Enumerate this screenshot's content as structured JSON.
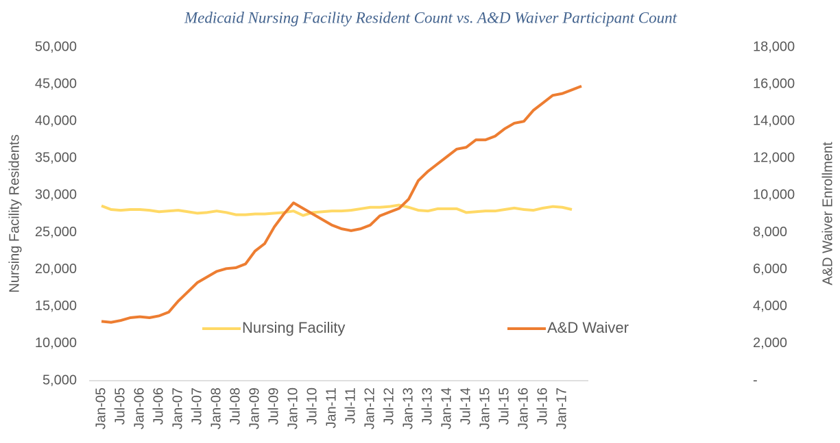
{
  "chart_data": {
    "type": "line",
    "title": "Medicaid Nursing Facility Resident Count vs. A&D Waiver Participant Count",
    "y_label": "Nursing Facility Residents",
    "y2_label": "A&D Waiver Enrollment",
    "categories": [
      "Jan-05",
      null,
      "Jul-05",
      null,
      "Jan-06",
      null,
      "Jul-06",
      null,
      "Jan-07",
      null,
      "Jul-07",
      null,
      "Jan-08",
      null,
      "Jul-08",
      null,
      "Jan-09",
      null,
      "Jul-09",
      null,
      "Jan-10",
      null,
      "Jul-10",
      null,
      "Jan-11",
      null,
      "Jul-11",
      null,
      "Jan-12",
      null,
      "Jul-12",
      null,
      "Jan-13",
      null,
      "Jul-13",
      null,
      "Jan-14",
      null,
      "Jul-14",
      null,
      "Jan-15",
      null,
      "Jul-15",
      null,
      "Jan-16",
      null,
      "Jul-16",
      null,
      "Jan-17",
      null,
      null
    ],
    "series": [
      {
        "name": "Nursing Facility",
        "color": "#ffd966",
        "values": [
          28600,
          28100,
          28000,
          28100,
          28100,
          28000,
          27800,
          27900,
          28000,
          27800,
          27600,
          27700,
          27900,
          27700,
          27400,
          27400,
          27500,
          27500,
          27600,
          27700,
          27900,
          27300,
          27700,
          27800,
          27900,
          27900,
          28000,
          28200,
          28400,
          28400,
          28500,
          28700,
          28400,
          28000,
          27900,
          28200,
          28200,
          28200,
          27700,
          27800,
          27900,
          27900,
          28100,
          28300,
          28100,
          28000,
          28300,
          28500,
          28400,
          28100,
          null
        ]
      },
      {
        "name": "A&D Waiver",
        "color": "#ed7d31",
        "axis": "y2",
        "values": [
          3200,
          3150,
          3250,
          3400,
          3450,
          3400,
          3500,
          3700,
          4300,
          4800,
          5300,
          5600,
          5900,
          6050,
          6100,
          6300,
          7000,
          7400,
          8300,
          9000,
          9600,
          9300,
          9000,
          8700,
          8400,
          8200,
          8100,
          8200,
          8400,
          8900,
          9100,
          9300,
          9800,
          10800,
          11300,
          11700,
          12100,
          12500,
          12600,
          13000,
          13000,
          13200,
          13600,
          13900,
          14000,
          14600,
          15000,
          15400,
          15500,
          15700,
          15900
        ]
      }
    ],
    "ylim": [
      5000,
      50000
    ],
    "yticks": [
      {
        "value": 5000,
        "label": "5,000"
      },
      {
        "value": 10000,
        "label": "10,000"
      },
      {
        "value": 15000,
        "label": "15,000"
      },
      {
        "value": 20000,
        "label": "20,000"
      },
      {
        "value": 25000,
        "label": "25,000"
      },
      {
        "value": 30000,
        "label": "30,000"
      },
      {
        "value": 35000,
        "label": "35,000"
      },
      {
        "value": 40000,
        "label": "40,000"
      },
      {
        "value": 45000,
        "label": "45,000"
      },
      {
        "value": 50000,
        "label": "50,000"
      }
    ],
    "y2lim": [
      0,
      18000
    ],
    "y2ticks": [
      {
        "value": 0,
        "label": "-"
      },
      {
        "value": 2000,
        "label": "2,000"
      },
      {
        "value": 4000,
        "label": "4,000"
      },
      {
        "value": 6000,
        "label": "6,000"
      },
      {
        "value": 8000,
        "label": "8,000"
      },
      {
        "value": 10000,
        "label": "10,000"
      },
      {
        "value": 12000,
        "label": "12,000"
      },
      {
        "value": 14000,
        "label": "14,000"
      },
      {
        "value": 16000,
        "label": "16,000"
      },
      {
        "value": 18000,
        "label": "18,000"
      }
    ],
    "grid": false,
    "legend": "center"
  }
}
